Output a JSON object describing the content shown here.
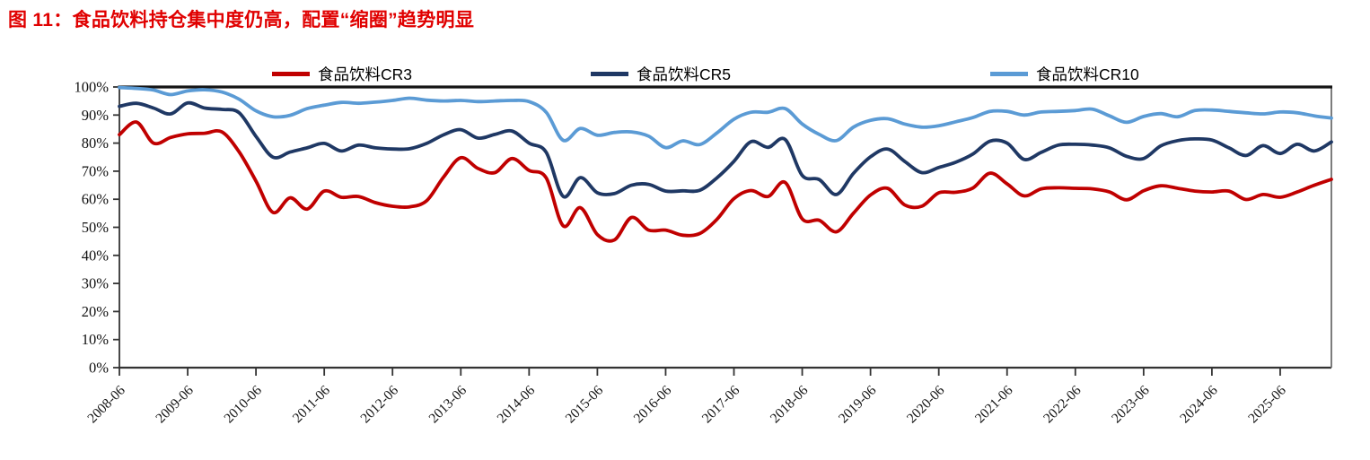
{
  "title": "图 11：食品饮料持仓集中度仍高，配置“缩圈”趋势明显",
  "chart_data": {
    "type": "line",
    "title": "图 11：食品饮料持仓集中度仍高，配置“缩圈”趋势明显",
    "xlabel": "",
    "ylabel": "",
    "ylim": [
      0,
      100
    ],
    "grid": false,
    "legend_position": "top",
    "y_tick_labels": [
      "0%",
      "10%",
      "20%",
      "30%",
      "40%",
      "50%",
      "60%",
      "70%",
      "80%",
      "90%",
      "100%"
    ],
    "x_tick_every": 4,
    "x": [
      "2008-06",
      "2008-09",
      "2008-12",
      "2009-03",
      "2009-06",
      "2009-09",
      "2009-12",
      "2010-03",
      "2010-06",
      "2010-09",
      "2010-12",
      "2011-03",
      "2011-06",
      "2011-09",
      "2011-12",
      "2012-03",
      "2012-06",
      "2012-09",
      "2012-12",
      "2013-03",
      "2013-06",
      "2013-09",
      "2013-12",
      "2014-03",
      "2014-06",
      "2014-09",
      "2014-12",
      "2015-03",
      "2015-06",
      "2015-09",
      "2015-12",
      "2016-03",
      "2016-06",
      "2016-09",
      "2016-12",
      "2017-03",
      "2017-06",
      "2017-09",
      "2017-12",
      "2018-03",
      "2018-06",
      "2018-09",
      "2018-12",
      "2019-03",
      "2019-06",
      "2019-09",
      "2019-12",
      "2020-03",
      "2020-06",
      "2020-09",
      "2020-12",
      "2021-03",
      "2021-06",
      "2021-09",
      "2021-12",
      "2022-03",
      "2022-06",
      "2022-09",
      "2022-12",
      "2023-03",
      "2023-06",
      "2023-09",
      "2023-12",
      "2024-03",
      "2024-06",
      "2024-09",
      "2024-12",
      "2025-03",
      "2025-06",
      "2025-09",
      "2025-12",
      "2026-03"
    ],
    "series": [
      {
        "name": "食品饮料CR3",
        "color": "#C00000",
        "values": [
          83,
          87.5,
          80,
          82,
          83.3,
          83.5,
          84,
          77,
          66.5,
          55.3,
          60.5,
          56.5,
          62.9,
          60.7,
          61,
          58.8,
          57.5,
          57.3,
          59.5,
          68,
          74.8,
          71,
          69.5,
          74.5,
          70.3,
          67.6,
          50.5,
          57,
          47.4,
          45.5,
          53.5,
          49,
          49,
          47.2,
          47.8,
          52.8,
          60.2,
          63.1,
          61,
          66,
          53,
          52.5,
          48.4,
          55,
          61.5,
          63.9,
          58,
          57.5,
          62.3,
          62.5,
          64,
          69.3,
          65.5,
          61.2,
          63.7,
          64.1,
          63.9,
          63.7,
          62.6,
          59.8,
          63,
          64.8,
          63.9,
          62.9,
          62.6,
          62.9,
          59.9,
          61.7,
          60.7,
          62.6,
          65,
          67.1
        ]
      },
      {
        "name": "食品饮料CR5",
        "color": "#1F3864",
        "values": [
          93.1,
          94.2,
          92.5,
          90.4,
          94.3,
          92.5,
          92,
          90.9,
          82.4,
          75,
          76.8,
          78.3,
          79.9,
          77.2,
          79.3,
          78.3,
          77.9,
          78,
          79.9,
          83,
          84.8,
          81.8,
          83.1,
          84.3,
          80,
          76.7,
          61,
          67.7,
          62.3,
          62,
          65,
          65.3,
          62.9,
          63,
          63.2,
          67.6,
          73.5,
          80.5,
          78.5,
          81.3,
          68.5,
          67,
          61.7,
          69.2,
          75.1,
          77.9,
          73.5,
          69.5,
          71.3,
          73.2,
          76.1,
          80.7,
          80,
          74.2,
          76.7,
          79.3,
          79.6,
          79.3,
          78.3,
          75.3,
          74.5,
          79,
          80.9,
          81.5,
          81.1,
          78.3,
          75.6,
          79.1,
          76.3,
          79.6,
          77.2,
          80.4
        ]
      },
      {
        "name": "食品饮料CR10",
        "color": "#5B9BD5",
        "values": [
          99.8,
          99.5,
          98.9,
          97.3,
          98.6,
          99,
          98.2,
          95.7,
          91.5,
          89.4,
          89.9,
          92.3,
          93.5,
          94.5,
          94.2,
          94.6,
          95.2,
          96,
          95.3,
          95,
          95.2,
          94.8,
          95,
          95.2,
          94.8,
          91,
          81,
          85.2,
          82.8,
          83.8,
          84,
          82.5,
          78.4,
          80.8,
          79.5,
          83.6,
          88.5,
          91,
          91,
          92.3,
          86.8,
          83.1,
          80.9,
          85.7,
          88.1,
          88.7,
          86.8,
          85.7,
          86.2,
          87.6,
          89.1,
          91.3,
          91.3,
          90,
          91.1,
          91.3,
          91.6,
          92.1,
          89.7,
          87.4,
          89.5,
          90.5,
          89.4,
          91.6,
          91.8,
          91.3,
          90.8,
          90.4,
          91.1,
          90.8,
          89.7,
          88.9
        ]
      }
    ]
  }
}
